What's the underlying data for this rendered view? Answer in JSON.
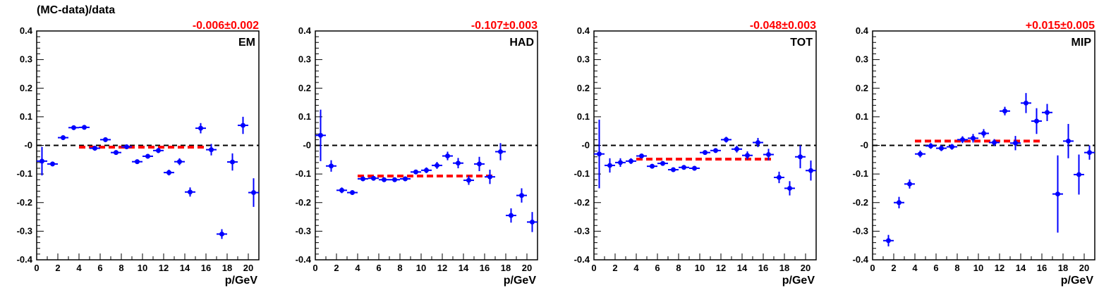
{
  "figure": {
    "ylabel": "(MC-data)/data",
    "colors": {
      "points": "#0000ff",
      "fit": "#ff0000",
      "zero_line": "#000000",
      "axis": "#000000"
    }
  },
  "chart_data": [
    {
      "type": "scatter",
      "panel_label": "EM",
      "fit_text": "-0.006±0.002",
      "fit": {
        "value": -0.006,
        "error": 0.002,
        "x_range": [
          4,
          16
        ]
      },
      "xlabel": "p/GeV",
      "xlim": [
        0,
        21
      ],
      "ylim": [
        -0.4,
        0.4
      ],
      "x_ticks": [
        "0",
        "2",
        "4",
        "6",
        "8",
        "10",
        "12",
        "14",
        "16",
        "18",
        "20"
      ],
      "y_ticks": [
        "-0.4",
        "-0.3",
        "-0.2",
        "-0.1",
        "-0",
        "0.1",
        "0.2",
        "0.3",
        "0.4"
      ],
      "zero_line": true,
      "points": [
        {
          "x": 0.5,
          "y": -0.055,
          "err": 0.05
        },
        {
          "x": 1.5,
          "y": -0.065,
          "err": 0.008
        },
        {
          "x": 2.5,
          "y": 0.027,
          "err": 0.006
        },
        {
          "x": 3.5,
          "y": 0.062,
          "err": 0.005
        },
        {
          "x": 4.5,
          "y": 0.063,
          "err": 0.005
        },
        {
          "x": 5.5,
          "y": -0.01,
          "err": 0.006
        },
        {
          "x": 6.5,
          "y": 0.02,
          "err": 0.006
        },
        {
          "x": 7.5,
          "y": -0.025,
          "err": 0.006
        },
        {
          "x": 8.5,
          "y": -0.005,
          "err": 0.006
        },
        {
          "x": 9.5,
          "y": -0.057,
          "err": 0.007
        },
        {
          "x": 10.5,
          "y": -0.038,
          "err": 0.008
        },
        {
          "x": 11.5,
          "y": -0.018,
          "err": 0.009
        },
        {
          "x": 12.5,
          "y": -0.095,
          "err": 0.01
        },
        {
          "x": 13.5,
          "y": -0.057,
          "err": 0.012
        },
        {
          "x": 14.5,
          "y": -0.163,
          "err": 0.016
        },
        {
          "x": 15.5,
          "y": 0.06,
          "err": 0.018
        },
        {
          "x": 16.5,
          "y": -0.015,
          "err": 0.02
        },
        {
          "x": 17.5,
          "y": -0.31,
          "err": 0.017
        },
        {
          "x": 18.5,
          "y": -0.058,
          "err": 0.03
        },
        {
          "x": 19.5,
          "y": 0.07,
          "err": 0.03
        },
        {
          "x": 20.5,
          "y": -0.165,
          "err": 0.05
        }
      ]
    },
    {
      "type": "scatter",
      "panel_label": "HAD",
      "fit_text": "-0.107±0.003",
      "fit": {
        "value": -0.107,
        "error": 0.003,
        "x_range": [
          4,
          17
        ]
      },
      "xlabel": "p/GeV",
      "xlim": [
        0,
        21
      ],
      "ylim": [
        -0.4,
        0.4
      ],
      "x_ticks": [
        "0",
        "2",
        "4",
        "6",
        "8",
        "10",
        "12",
        "14",
        "16",
        "18",
        "20"
      ],
      "y_ticks": [
        "-0.4",
        "-0.3",
        "-0.2",
        "-0.1",
        "-0",
        "0.1",
        "0.2",
        "0.3",
        "0.4"
      ],
      "zero_line": true,
      "points": [
        {
          "x": 0.5,
          "y": 0.035,
          "err": 0.09
        },
        {
          "x": 1.5,
          "y": -0.072,
          "err": 0.02
        },
        {
          "x": 2.5,
          "y": -0.157,
          "err": 0.01
        },
        {
          "x": 3.5,
          "y": -0.165,
          "err": 0.007
        },
        {
          "x": 4.5,
          "y": -0.117,
          "err": 0.005
        },
        {
          "x": 5.5,
          "y": -0.115,
          "err": 0.005
        },
        {
          "x": 6.5,
          "y": -0.12,
          "err": 0.005
        },
        {
          "x": 7.5,
          "y": -0.12,
          "err": 0.005
        },
        {
          "x": 8.5,
          "y": -0.117,
          "err": 0.006
        },
        {
          "x": 9.5,
          "y": -0.093,
          "err": 0.008
        },
        {
          "x": 10.5,
          "y": -0.087,
          "err": 0.01
        },
        {
          "x": 11.5,
          "y": -0.07,
          "err": 0.012
        },
        {
          "x": 12.5,
          "y": -0.037,
          "err": 0.015
        },
        {
          "x": 13.5,
          "y": -0.062,
          "err": 0.018
        },
        {
          "x": 14.5,
          "y": -0.122,
          "err": 0.016
        },
        {
          "x": 15.5,
          "y": -0.065,
          "err": 0.025
        },
        {
          "x": 16.5,
          "y": -0.11,
          "err": 0.025
        },
        {
          "x": 17.5,
          "y": -0.022,
          "err": 0.03
        },
        {
          "x": 18.5,
          "y": -0.245,
          "err": 0.025
        },
        {
          "x": 19.5,
          "y": -0.175,
          "err": 0.025
        },
        {
          "x": 20.5,
          "y": -0.268,
          "err": 0.035
        }
      ]
    },
    {
      "type": "scatter",
      "panel_label": "TOT",
      "fit_text": "-0.048±0.003",
      "fit": {
        "value": -0.048,
        "error": 0.003,
        "x_range": [
          4,
          17
        ]
      },
      "xlabel": "p/GeV",
      "xlim": [
        0,
        21
      ],
      "ylim": [
        -0.4,
        0.4
      ],
      "x_ticks": [
        "0",
        "2",
        "4",
        "6",
        "8",
        "10",
        "12",
        "14",
        "16",
        "18",
        "20"
      ],
      "y_ticks": [
        "-0.4",
        "-0.3",
        "-0.2",
        "-0.1",
        "-0",
        "0.1",
        "0.2",
        "0.3",
        "0.4"
      ],
      "zero_line": true,
      "points": [
        {
          "x": 0.5,
          "y": -0.03,
          "err": 0.12
        },
        {
          "x": 1.5,
          "y": -0.07,
          "err": 0.025
        },
        {
          "x": 2.5,
          "y": -0.06,
          "err": 0.015
        },
        {
          "x": 3.5,
          "y": -0.055,
          "err": 0.01
        },
        {
          "x": 4.5,
          "y": -0.037,
          "err": 0.006
        },
        {
          "x": 5.5,
          "y": -0.073,
          "err": 0.005
        },
        {
          "x": 6.5,
          "y": -0.063,
          "err": 0.005
        },
        {
          "x": 7.5,
          "y": -0.085,
          "err": 0.005
        },
        {
          "x": 8.5,
          "y": -0.077,
          "err": 0.005
        },
        {
          "x": 9.5,
          "y": -0.08,
          "err": 0.006
        },
        {
          "x": 10.5,
          "y": -0.025,
          "err": 0.007
        },
        {
          "x": 11.5,
          "y": -0.018,
          "err": 0.008
        },
        {
          "x": 12.5,
          "y": 0.02,
          "err": 0.01
        },
        {
          "x": 13.5,
          "y": -0.013,
          "err": 0.012
        },
        {
          "x": 14.5,
          "y": -0.035,
          "err": 0.014
        },
        {
          "x": 15.5,
          "y": 0.01,
          "err": 0.016
        },
        {
          "x": 16.5,
          "y": -0.032,
          "err": 0.02
        },
        {
          "x": 17.5,
          "y": -0.112,
          "err": 0.02
        },
        {
          "x": 18.5,
          "y": -0.15,
          "err": 0.025
        },
        {
          "x": 19.5,
          "y": -0.04,
          "err": 0.04
        },
        {
          "x": 20.5,
          "y": -0.088,
          "err": 0.035
        }
      ]
    },
    {
      "type": "scatter",
      "panel_label": "MIP",
      "fit_text": "+0.015±0.005",
      "fit": {
        "value": 0.015,
        "error": 0.005,
        "x_range": [
          4,
          16
        ]
      },
      "xlabel": "p/GeV",
      "xlim": [
        0,
        21
      ],
      "ylim": [
        -0.4,
        0.4
      ],
      "x_ticks": [
        "0",
        "2",
        "4",
        "6",
        "8",
        "10",
        "12",
        "14",
        "16",
        "18",
        "20"
      ],
      "y_ticks": [
        "-0.4",
        "-0.3",
        "-0.2",
        "-0.1",
        "-0",
        "0.1",
        "0.2",
        "0.3",
        "0.4"
      ],
      "zero_line": true,
      "points": [
        {
          "x": 1.5,
          "y": -0.333,
          "err": 0.02
        },
        {
          "x": 2.5,
          "y": -0.2,
          "err": 0.02
        },
        {
          "x": 3.5,
          "y": -0.135,
          "err": 0.016
        },
        {
          "x": 4.5,
          "y": -0.03,
          "err": 0.012
        },
        {
          "x": 5.5,
          "y": -0.002,
          "err": 0.01
        },
        {
          "x": 6.5,
          "y": -0.01,
          "err": 0.01
        },
        {
          "x": 7.5,
          "y": -0.005,
          "err": 0.01
        },
        {
          "x": 8.5,
          "y": 0.02,
          "err": 0.012
        },
        {
          "x": 9.5,
          "y": 0.025,
          "err": 0.015
        },
        {
          "x": 10.5,
          "y": 0.042,
          "err": 0.015
        },
        {
          "x": 11.5,
          "y": 0.01,
          "err": 0.012
        },
        {
          "x": 12.5,
          "y": 0.12,
          "err": 0.015
        },
        {
          "x": 13.5,
          "y": 0.008,
          "err": 0.025
        },
        {
          "x": 14.5,
          "y": 0.148,
          "err": 0.035
        },
        {
          "x": 15.5,
          "y": 0.085,
          "err": 0.045
        },
        {
          "x": 16.5,
          "y": 0.115,
          "err": 0.03
        },
        {
          "x": 17.5,
          "y": -0.17,
          "err": 0.135
        },
        {
          "x": 18.5,
          "y": 0.015,
          "err": 0.06
        },
        {
          "x": 19.5,
          "y": -0.102,
          "err": 0.07
        },
        {
          "x": 20.5,
          "y": -0.025,
          "err": 0.025
        }
      ]
    }
  ]
}
